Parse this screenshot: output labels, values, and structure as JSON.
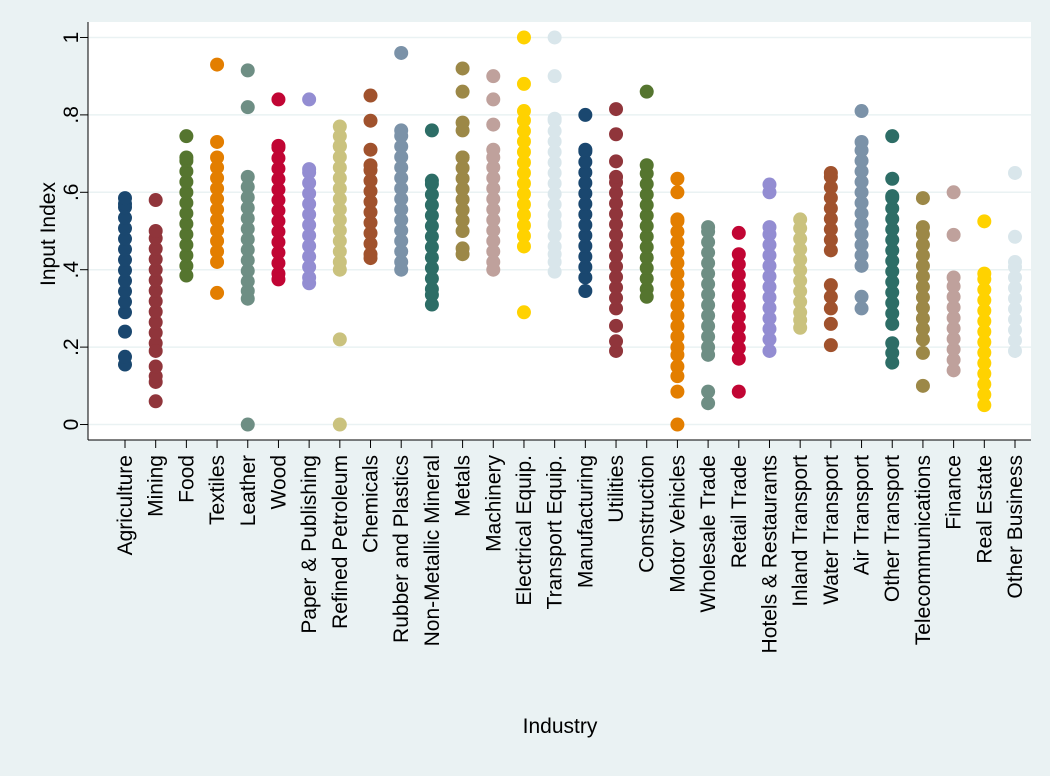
{
  "chart_data": {
    "type": "scatter",
    "title": "",
    "xlabel": "Industry",
    "ylabel": "Input Index",
    "ylim": [
      -0.04,
      1.04
    ],
    "yticks": [
      {
        "value": 0,
        "label": "0"
      },
      {
        "value": 0.2,
        "label": ".2"
      },
      {
        "value": 0.4,
        "label": ".4"
      },
      {
        "value": 0.6,
        "label": ".6"
      },
      {
        "value": 0.8,
        "label": ".8"
      },
      {
        "value": 1,
        "label": "1"
      }
    ],
    "grid": true,
    "legend": "none",
    "categories": [
      "Agriculture",
      "Mining",
      "Food",
      "Textiles",
      "Leather",
      "Wood",
      "Paper & Publishing",
      "Refined Petroleum",
      "Chemicals",
      "Rubber and Plastics",
      "Non-Metallic Mineral",
      "Metals",
      "Machinery",
      "Electrical Equip.",
      "Transport Equip.",
      "Manufacturing",
      "Utilities",
      "Construction",
      "Motor Vehicles",
      "Wholesale Trade",
      "Retail Trade",
      "Hotels & Restaurants",
      "Inland Transport",
      "Water Transport",
      "Air Transport",
      "Other Transport",
      "Telecommunications",
      "Finance",
      "Real Estate",
      "Other Business"
    ],
    "series": [
      {
        "color": "#1a476f",
        "range": [
          0.29,
          0.57
        ],
        "points": [
          0.155,
          0.175,
          0.24,
          0.585
        ]
      },
      {
        "color": "#90353b",
        "range": [
          0.21,
          0.5
        ],
        "points": [
          0.06,
          0.11,
          0.125,
          0.15,
          0.19,
          0.58
        ]
      },
      {
        "color": "#55752f",
        "range": [
          0.41,
          0.69
        ],
        "points": [
          0.385,
          0.745
        ]
      },
      {
        "color": "#e37e00",
        "range": [
          0.42,
          0.69
        ],
        "points": [
          0.34,
          0.73,
          0.93
        ]
      },
      {
        "color": "#6e8e84",
        "range": [
          0.37,
          0.64
        ],
        "points": [
          0.0,
          0.325,
          0.345,
          0.82,
          0.915
        ]
      },
      {
        "color": "#c10534",
        "range": [
          0.39,
          0.72
        ],
        "points": [
          0.375,
          0.84
        ]
      },
      {
        "color": "#938dd2",
        "range": [
          0.38,
          0.66
        ],
        "points": [
          0.365,
          0.84
        ]
      },
      {
        "color": "#cac27e",
        "range": [
          0.42,
          0.72
        ],
        "points": [
          0.0,
          0.22,
          0.4,
          0.745,
          0.77
        ]
      },
      {
        "color": "#a0522d",
        "range": [
          0.44,
          0.67
        ],
        "points": [
          0.43,
          0.71,
          0.785,
          0.85
        ]
      },
      {
        "color": "#7b92a8",
        "range": [
          0.42,
          0.76
        ],
        "points": [
          0.4,
          0.96
        ]
      },
      {
        "color": "#2d6d66",
        "range": [
          0.35,
          0.63
        ],
        "points": [
          0.31,
          0.335,
          0.76
        ]
      },
      {
        "color": "#9c8847",
        "range": [
          0.5,
          0.69
        ],
        "points": [
          0.44,
          0.455,
          0.76,
          0.78,
          0.86,
          0.92
        ]
      },
      {
        "color": "#bfa19c",
        "range": [
          0.42,
          0.69
        ],
        "points": [
          0.4,
          0.71,
          0.775,
          0.84,
          0.9
        ]
      },
      {
        "color": "#ffd200",
        "range": [
          0.46,
          0.81
        ],
        "points": [
          0.29,
          0.88,
          1.0
        ]
      },
      {
        "color": "#d9e6eb",
        "range": [
          0.46,
          0.79
        ],
        "points": [
          0.395,
          0.42,
          0.44,
          0.52,
          0.9,
          1.0
        ]
      },
      {
        "color": "#1a476f",
        "range": [
          0.38,
          0.71
        ],
        "points": [
          0.345,
          0.8
        ]
      },
      {
        "color": "#90353b",
        "range": [
          0.3,
          0.64
        ],
        "points": [
          0.19,
          0.215,
          0.255,
          0.68,
          0.75,
          0.815
        ]
      },
      {
        "color": "#55752f",
        "range": [
          0.35,
          0.67
        ],
        "points": [
          0.33,
          0.86
        ]
      },
      {
        "color": "#e37e00",
        "range": [
          0.2,
          0.53
        ],
        "points": [
          0.0,
          0.085,
          0.125,
          0.15,
          0.18,
          0.6,
          0.635
        ]
      },
      {
        "color": "#6e8e84",
        "range": [
          0.2,
          0.51
        ],
        "points": [
          0.055,
          0.085,
          0.18
        ]
      },
      {
        "color": "#c10534",
        "range": [
          0.17,
          0.44
        ],
        "points": [
          0.085,
          0.495
        ]
      },
      {
        "color": "#938dd2",
        "range": [
          0.22,
          0.51
        ],
        "points": [
          0.19,
          0.6,
          0.62
        ]
      },
      {
        "color": "#cac27e",
        "range": [
          0.29,
          0.53
        ],
        "points": [
          0.25,
          0.27
        ]
      },
      {
        "color": "#a0522d",
        "range": [
          0.45,
          0.65
        ],
        "points": [
          0.205,
          0.26,
          0.3,
          0.33,
          0.36
        ]
      },
      {
        "color": "#7b92a8",
        "range": [
          0.41,
          0.73
        ],
        "points": [
          0.3,
          0.33,
          0.81
        ]
      },
      {
        "color": "#2d6d66",
        "range": [
          0.26,
          0.59
        ],
        "points": [
          0.16,
          0.185,
          0.21,
          0.635,
          0.745
        ]
      },
      {
        "color": "#9c8847",
        "range": [
          0.22,
          0.51
        ],
        "points": [
          0.1,
          0.185,
          0.585
        ]
      },
      {
        "color": "#bfa19c",
        "range": [
          0.14,
          0.38
        ],
        "points": [
          0.49,
          0.6
        ]
      },
      {
        "color": "#ffd200",
        "range": [
          0.05,
          0.39
        ],
        "points": [
          0.525
        ]
      },
      {
        "color": "#d9e6eb",
        "range": [
          0.19,
          0.42
        ],
        "points": [
          0.485,
          0.65
        ]
      }
    ]
  }
}
